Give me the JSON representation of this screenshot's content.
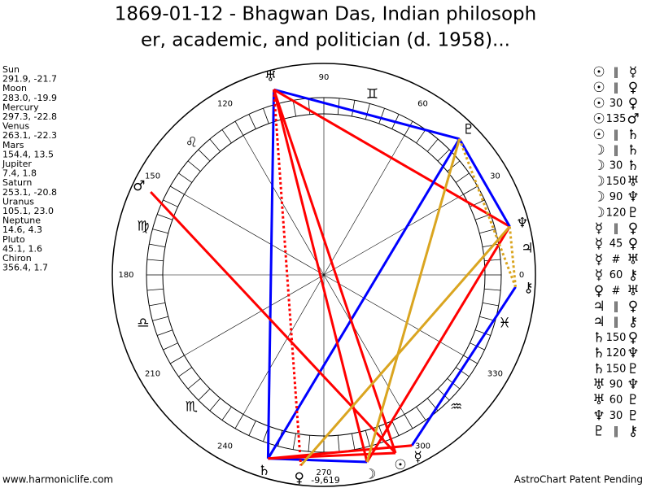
{
  "header": {
    "title_lines": [
      "1869-01-12 - Bhagwan Das, Indian philosoph",
      "er, academic, and politician (d. 1958)..."
    ]
  },
  "planets": [
    {
      "name": "Sun",
      "position": "291.9, -21.7",
      "glyph": "☉"
    },
    {
      "name": "Moon",
      "position": "283.0, -19.9",
      "glyph": "☽"
    },
    {
      "name": "Mercury",
      "position": "297.3, -22.8",
      "glyph": "☿"
    },
    {
      "name": "Venus",
      "position": "263.1, -22.3",
      "glyph": "♀"
    },
    {
      "name": "Mars",
      "position": "154.4, 13.5",
      "glyph": "♂"
    },
    {
      "name": "Jupiter",
      "position": "7.4, 1.8",
      "glyph": "♃"
    },
    {
      "name": "Saturn",
      "position": "253.1, -20.8",
      "glyph": "♄"
    },
    {
      "name": "Uranus",
      "position": "105.1, 23.0",
      "glyph": "♅"
    },
    {
      "name": "Neptune",
      "position": "14.6, 4.3",
      "glyph": "♆"
    },
    {
      "name": "Pluto",
      "position": "45.1, 1.6",
      "glyph": "♇"
    },
    {
      "name": "Chiron",
      "position": "356.4, 1.7",
      "glyph": "⚷"
    }
  ],
  "aspects": [
    [
      "☉",
      "‖",
      "☿"
    ],
    [
      "☉",
      "‖",
      "♀"
    ],
    [
      "☉",
      "30",
      "♀"
    ],
    [
      "☉",
      "135",
      "♂"
    ],
    [
      "☉",
      "‖",
      "♄"
    ],
    [
      "☽",
      "‖",
      "♄"
    ],
    [
      "☽",
      "30",
      "♄"
    ],
    [
      "☽",
      "150",
      "♅"
    ],
    [
      "☽",
      "90",
      "♆"
    ],
    [
      "☽",
      "120",
      "♇"
    ],
    [
      "☿",
      "‖",
      "♀"
    ],
    [
      "☿",
      "45",
      "♀"
    ],
    [
      "☿",
      "#",
      "♅"
    ],
    [
      "☿",
      "60",
      "⚷"
    ],
    [
      "♀",
      "#",
      "♅"
    ],
    [
      "♃",
      "‖",
      "♀"
    ],
    [
      "♃",
      "‖",
      "⚷"
    ],
    [
      "♄",
      "150",
      "♀"
    ],
    [
      "♄",
      "120",
      "♆"
    ],
    [
      "♄",
      "150",
      "♇"
    ],
    [
      "♅",
      "90",
      "♆"
    ],
    [
      "♅",
      "60",
      "♇"
    ],
    [
      "♆",
      "30",
      "♇"
    ],
    [
      "♇",
      "‖",
      "⚷"
    ]
  ],
  "wheel": {
    "degree_labels": [
      0,
      30,
      60,
      90,
      120,
      150,
      180,
      210,
      240,
      270,
      300,
      330
    ],
    "signs": [
      null,
      null,
      "♊",
      null,
      "♌",
      "♍",
      "♎",
      "♏",
      null,
      null,
      "♒",
      "♓"
    ],
    "center_note": "-9,619",
    "lines": [
      {
        "from": 7,
        "to": 9,
        "color": "#0000ff",
        "dashed": false
      },
      {
        "from": 7,
        "to": 6,
        "color": "#0000ff",
        "dashed": false
      },
      {
        "from": 7,
        "to": 8,
        "color": "#ff0000",
        "dashed": false
      },
      {
        "from": 9,
        "to": 8,
        "color": "#0000ff",
        "dashed": false
      },
      {
        "from": 9,
        "to": 6,
        "color": "#0000ff",
        "dashed": false
      },
      {
        "from": 10,
        "to": 2,
        "color": "#0000ff",
        "dashed": false
      },
      {
        "from": 6,
        "to": 1,
        "color": "#0000ff",
        "dashed": false
      },
      {
        "from": 4,
        "to": 0,
        "color": "#ff0000",
        "dashed": false
      },
      {
        "from": 7,
        "to": 1,
        "color": "#ff0000",
        "dashed": false
      },
      {
        "from": 7,
        "to": 0,
        "color": "#ff0000",
        "dashed": false
      },
      {
        "from": 6,
        "to": 2,
        "color": "#ff0000",
        "dashed": false
      },
      {
        "from": 6,
        "to": 0,
        "color": "#ff0000",
        "dashed": false
      },
      {
        "from": 8,
        "to": 1,
        "color": "#ff0000",
        "dashed": false
      },
      {
        "from": 9,
        "to": 1,
        "color": "#daa520",
        "dashed": false
      },
      {
        "from": 8,
        "to": 3,
        "color": "#daa520",
        "dashed": false
      },
      {
        "from": 9,
        "to": 10,
        "color": "#daa520",
        "dashed": true
      },
      {
        "from": 8,
        "to": 10,
        "color": "#daa520",
        "dashed": true
      },
      {
        "from": 7,
        "to": 3,
        "color": "#ff0000",
        "dashed": true
      }
    ]
  },
  "footer": {
    "site": "www.harmoniclife.com",
    "notice": "AstroChart Patent Pending"
  }
}
